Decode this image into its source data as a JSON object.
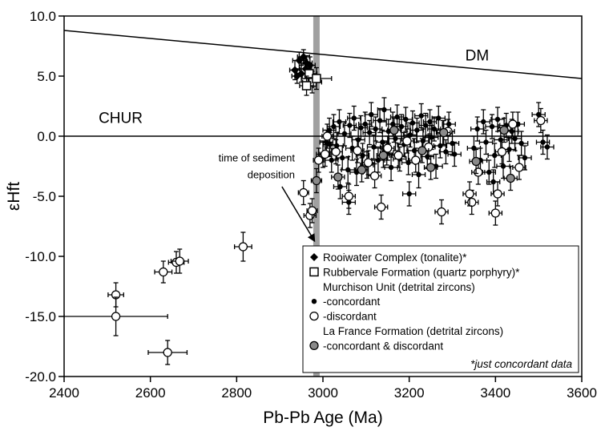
{
  "chart_data": {
    "type": "scatter",
    "xlabel": "Pb-Pb Age (Ma)",
    "ylabel": "εHft",
    "xlim": [
      2400,
      3600
    ],
    "ylim": [
      -20,
      10
    ],
    "xticks": [
      "2400",
      "2600",
      "2800",
      "3000",
      "3200",
      "3400",
      "3600"
    ],
    "yticks": [
      "10.0",
      "5.0",
      "0.0",
      "-5.0",
      "-10.0",
      "-15.0",
      "-20.0"
    ],
    "xtick_values": [
      2400,
      2600,
      2800,
      3000,
      3200,
      3400,
      3600
    ],
    "ytick_values": [
      10,
      5,
      0,
      -5,
      -10,
      -15,
      -20
    ],
    "grid": false,
    "reference_lines": {
      "dm": {
        "label": "DM",
        "from": [
          2400,
          8.8
        ],
        "to": [
          3600,
          4.8
        ]
      },
      "chur": {
        "label": "CHUR",
        "y": 0
      },
      "deposition": {
        "x": 2985,
        "color": "#a0a0a0"
      }
    },
    "annotation": {
      "line1": "time of sediment",
      "line2": "deposition",
      "arrow_from": [
        2905,
        -4.2
      ],
      "arrow_to": [
        2980,
        -8.7
      ]
    },
    "legend": {
      "placement": "bottom-right",
      "entries": [
        {
          "marker": "diamond",
          "label": "Rooiwater Complex (tonalite)*"
        },
        {
          "marker": "square",
          "label": "Rubbervale Formation (quartz porphyry)*"
        },
        {
          "marker": "none",
          "label": "Murchison Unit (detrital zircons)"
        },
        {
          "marker": "dot",
          "label": "-concordant"
        },
        {
          "marker": "open-circle",
          "label": "-discordant"
        },
        {
          "marker": "none",
          "label": "La France Formation (detrital zircons)"
        },
        {
          "marker": "gray-circle",
          "label": "-concordant & discordant"
        }
      ],
      "note": "*just concordant data"
    },
    "series": [
      {
        "name": "Rooiwater Complex (tonalite)*",
        "marker": "diamond",
        "points": [
          [
            2945,
            6.3,
            15,
            0.7
          ],
          [
            2955,
            6.6,
            14,
            0.6
          ],
          [
            2960,
            5.6,
            14,
            0.8
          ],
          [
            2950,
            5.2,
            12,
            0.7
          ],
          [
            2940,
            5.0,
            12,
            0.6
          ],
          [
            2962,
            6.1,
            13,
            0.6
          ],
          [
            2970,
            5.9,
            12,
            0.7
          ],
          [
            2935,
            5.5,
            12,
            0.8
          ]
        ]
      },
      {
        "name": "Rubbervale Formation (quartz porphyry)*",
        "marker": "square",
        "points": [
          [
            2975,
            4.5,
            22,
            0.9
          ],
          [
            2968,
            5.2,
            18,
            0.8
          ],
          [
            2985,
            4.8,
            35,
            0.9
          ],
          [
            2962,
            4.2,
            16,
            0.8
          ]
        ]
      },
      {
        "name": "-concordant",
        "marker": "dot",
        "points": [
          [
            3000,
            -1.5,
            15,
            1.1
          ],
          [
            3008,
            -0.5,
            15,
            1.0
          ],
          [
            3015,
            0.5,
            15,
            1.0
          ],
          [
            3020,
            -2.0,
            15,
            1.0
          ],
          [
            3025,
            0.8,
            15,
            1.0
          ],
          [
            3032,
            -0.8,
            15,
            1.1
          ],
          [
            3038,
            1.2,
            15,
            1.0
          ],
          [
            3045,
            -1.8,
            15,
            1.0
          ],
          [
            3050,
            0.2,
            15,
            1.0
          ],
          [
            3058,
            -2.8,
            15,
            1.1
          ],
          [
            3062,
            0.9,
            15,
            1.0
          ],
          [
            3068,
            -1.0,
            15,
            1.0
          ],
          [
            3072,
            1.5,
            15,
            1.0
          ],
          [
            3078,
            -3.0,
            15,
            1.1
          ],
          [
            3082,
            -0.3,
            15,
            1.0
          ],
          [
            3088,
            0.7,
            15,
            1.0
          ],
          [
            3092,
            -1.6,
            15,
            1.0
          ],
          [
            3098,
            1.0,
            15,
            1.0
          ],
          [
            3102,
            -2.4,
            15,
            1.1
          ],
          [
            3108,
            0.3,
            15,
            1.0
          ],
          [
            3112,
            1.8,
            15,
            1.0
          ],
          [
            3118,
            -0.9,
            15,
            1.0
          ],
          [
            3122,
            0.6,
            15,
            1.0
          ],
          [
            3128,
            -2.0,
            15,
            1.0
          ],
          [
            3132,
            1.3,
            15,
            1.0
          ],
          [
            3138,
            -0.5,
            15,
            1.0
          ],
          [
            3142,
            2.2,
            15,
            1.0
          ],
          [
            3148,
            -1.4,
            15,
            1.0
          ],
          [
            3152,
            0.4,
            15,
            1.0
          ],
          [
            3158,
            -2.6,
            15,
            1.1
          ],
          [
            3162,
            1.0,
            15,
            1.0
          ],
          [
            3168,
            -0.2,
            15,
            1.0
          ],
          [
            3172,
            1.6,
            15,
            1.0
          ],
          [
            3178,
            -1.9,
            15,
            1.0
          ],
          [
            3182,
            0.8,
            15,
            1.0
          ],
          [
            3188,
            -0.7,
            15,
            1.0
          ],
          [
            3192,
            1.4,
            15,
            1.0
          ],
          [
            3198,
            -2.2,
            15,
            1.0
          ],
          [
            3202,
            0.1,
            15,
            1.0
          ],
          [
            3208,
            1.1,
            15,
            1.0
          ],
          [
            3212,
            -1.2,
            15,
            1.0
          ],
          [
            3218,
            0.5,
            15,
            1.0
          ],
          [
            3222,
            -3.2,
            15,
            1.1
          ],
          [
            3228,
            1.7,
            15,
            1.0
          ],
          [
            3232,
            -0.4,
            15,
            1.0
          ],
          [
            3238,
            0.9,
            15,
            1.0
          ],
          [
            3242,
            -1.7,
            15,
            1.0
          ],
          [
            3248,
            1.2,
            15,
            1.0
          ],
          [
            3252,
            -0.1,
            15,
            1.0
          ],
          [
            3258,
            0.6,
            15,
            1.0
          ],
          [
            3262,
            -2.5,
            15,
            1.0
          ],
          [
            3268,
            1.5,
            15,
            1.0
          ],
          [
            3272,
            -0.8,
            15,
            1.0
          ],
          [
            3278,
            0.3,
            15,
            1.0
          ],
          [
            3285,
            -1.3,
            15,
            1.0
          ],
          [
            3292,
            1.0,
            15,
            1.0
          ],
          [
            3300,
            -0.6,
            15,
            1.0
          ],
          [
            3060,
            -5.5,
            15,
            1.0
          ],
          [
            3200,
            -4.8,
            15,
            1.0
          ],
          [
            3040,
            -4.2,
            15,
            1.0
          ],
          [
            3350,
            -1.0,
            15,
            1.0
          ],
          [
            3358,
            0.6,
            15,
            1.0
          ],
          [
            3365,
            -2.0,
            15,
            1.0
          ],
          [
            3372,
            1.2,
            15,
            1.0
          ],
          [
            3378,
            -0.5,
            15,
            1.0
          ],
          [
            3385,
            -3.0,
            15,
            1.0
          ],
          [
            3392,
            0.8,
            15,
            1.0
          ],
          [
            3398,
            -1.6,
            15,
            1.0
          ],
          [
            3405,
            1.4,
            15,
            1.0
          ],
          [
            3412,
            -0.3,
            15,
            1.0
          ],
          [
            3418,
            -2.5,
            15,
            1.0
          ],
          [
            3425,
            0.9,
            15,
            1.0
          ],
          [
            3432,
            -1.1,
            15,
            1.0
          ],
          [
            3438,
            0.4,
            15,
            1.0
          ],
          [
            3445,
            -0.2,
            15,
            1.0
          ],
          [
            3452,
            1.0,
            15,
            1.0
          ],
          [
            3460,
            -0.6,
            15,
            1.0
          ],
          [
            3468,
            -1.8,
            15,
            1.0
          ],
          [
            3500,
            1.8,
            15,
            1.0
          ],
          [
            3510,
            -0.5,
            15,
            1.0
          ],
          [
            3520,
            -0.9,
            15,
            1.0
          ],
          [
            3395,
            -3.8,
            15,
            1.0
          ],
          [
            3305,
            -1.5,
            15,
            1.0
          ],
          [
            3016,
            -0.7,
            15,
            1.0
          ]
        ]
      },
      {
        "name": "-discordant",
        "marker": "open-circle",
        "points": [
          [
            2520,
            -13.2,
            18,
            1.0
          ],
          [
            2520,
            -15.0,
            120,
            1.6
          ],
          [
            2640,
            -18.0,
            45,
            1.0
          ],
          [
            2630,
            -11.3,
            20,
            0.9
          ],
          [
            2660,
            -10.5,
            18,
            0.9
          ],
          [
            2668,
            -10.4,
            20,
            1.0
          ],
          [
            2815,
            -9.2,
            20,
            1.2
          ],
          [
            2955,
            -4.7,
            12,
            1.0
          ],
          [
            2970,
            -6.6,
            14,
            1.0
          ],
          [
            2975,
            -6.2,
            12,
            1.0
          ],
          [
            2990,
            -2.0,
            12,
            1.0
          ],
          [
            3005,
            -1.5,
            12,
            1.0
          ],
          [
            3010,
            0.0,
            12,
            1.0
          ],
          [
            3030,
            -1.3,
            15,
            1.0
          ],
          [
            3060,
            -5.0,
            15,
            1.0
          ],
          [
            3080,
            -1.2,
            15,
            1.0
          ],
          [
            3105,
            -2.2,
            15,
            1.0
          ],
          [
            3135,
            -5.9,
            15,
            1.0
          ],
          [
            3150,
            -1.0,
            15,
            1.0
          ],
          [
            3175,
            -1.6,
            15,
            1.0
          ],
          [
            3215,
            -2.0,
            15,
            1.0
          ],
          [
            3245,
            -0.9,
            15,
            1.0
          ],
          [
            3275,
            -6.3,
            15,
            1.0
          ],
          [
            3290,
            0.4,
            15,
            1.0
          ],
          [
            3345,
            -5.5,
            15,
            1.0
          ],
          [
            3360,
            -3.0,
            15,
            1.0
          ],
          [
            3400,
            -6.4,
            15,
            1.0
          ],
          [
            3405,
            -4.8,
            15,
            1.0
          ],
          [
            3415,
            -1.3,
            15,
            1.0
          ],
          [
            3440,
            1.0,
            15,
            1.0
          ],
          [
            3455,
            -2.6,
            15,
            1.0
          ],
          [
            3505,
            1.3,
            15,
            1.0
          ],
          [
            3340,
            -4.8,
            15,
            1.0
          ],
          [
            3120,
            -3.3,
            15,
            1.0
          ],
          [
            3195,
            -0.4,
            15,
            1.0
          ]
        ]
      },
      {
        "name": "-concordant & discordant",
        "marker": "gray-circle",
        "points": [
          [
            2985,
            -3.7,
            12,
            1.0
          ],
          [
            3035,
            -3.4,
            15,
            1.0
          ],
          [
            3090,
            -2.8,
            15,
            1.0
          ],
          [
            3140,
            -1.6,
            15,
            1.0
          ],
          [
            3165,
            0.5,
            15,
            1.0
          ],
          [
            3230,
            -1.2,
            15,
            1.0
          ],
          [
            3280,
            0.3,
            15,
            1.0
          ],
          [
            3355,
            -2.1,
            15,
            1.0
          ],
          [
            3420,
            0.5,
            15,
            1.0
          ],
          [
            3435,
            -3.5,
            15,
            1.0
          ],
          [
            3250,
            -2.6,
            15,
            1.0
          ]
        ]
      }
    ]
  }
}
